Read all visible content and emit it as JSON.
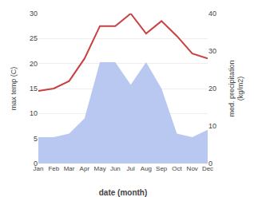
{
  "chart_data": {
    "type": "line",
    "categories": [
      "Jan",
      "Feb",
      "Mar",
      "Apr",
      "May",
      "Jun",
      "Jul",
      "Aug",
      "Sep",
      "Oct",
      "Nov",
      "Dec"
    ],
    "xlabel": "date (month)",
    "ylabel": "max temp (C)",
    "y2label": "med. precipitation\n(kg/m2)",
    "series": [
      {
        "type": "area",
        "color": "#b8c8f0",
        "axis": "y2",
        "values": [
          7.0,
          7.0,
          8.0,
          12.0,
          27.0,
          27.0,
          21.0,
          27.0,
          20.0,
          8.0,
          7.0,
          9.0
        ]
      },
      {
        "type": "line",
        "color": "#c84040",
        "values": [
          14.5,
          15.0,
          16.5,
          21.0,
          27.5,
          27.5,
          30.0,
          26.0,
          28.5,
          25.5,
          22.0,
          21.0
        ]
      }
    ],
    "ylim": [
      0,
      30
    ],
    "yticks": [
      0,
      5,
      10,
      15,
      20,
      25,
      30
    ],
    "y2lim": [
      0,
      40
    ],
    "y2ticks": [
      0,
      10,
      20,
      30,
      40
    ],
    "grid": true
  }
}
